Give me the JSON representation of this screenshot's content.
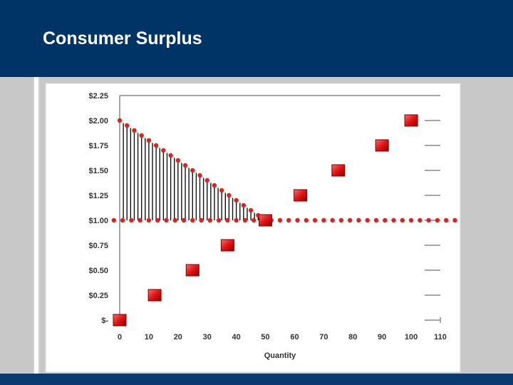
{
  "slide": {
    "title": "Consumer Surplus"
  },
  "chart_data": {
    "type": "scatter",
    "title": "",
    "xlabel": "Quantity",
    "ylabel": "",
    "xlim": [
      0,
      110
    ],
    "ylim": [
      0,
      2.25
    ],
    "x_ticks": [
      "0",
      "10",
      "20",
      "30",
      "40",
      "50",
      "60",
      "70",
      "80",
      "90",
      "100",
      "110"
    ],
    "y_ticks": [
      "$-",
      "$0.25",
      "$0.50",
      "$0.75",
      "$1.00",
      "$1.25",
      "$1.50",
      "$1.75",
      "$2.00",
      "$2.25"
    ],
    "grid": false,
    "series": [
      {
        "marker": "square",
        "color": "#e01010",
        "points": [
          [
            0,
            0
          ],
          [
            12,
            0.25
          ],
          [
            25,
            0.5
          ],
          [
            37,
            0.75
          ],
          [
            50,
            1.0
          ],
          [
            62,
            1.25
          ],
          [
            75,
            1.5
          ],
          [
            90,
            1.75
          ],
          [
            100,
            2.0
          ]
        ]
      },
      {
        "marker": "dot",
        "color": "#dd2222",
        "points": [
          [
            0,
            2.0
          ],
          [
            2.5,
            1.95
          ],
          [
            5,
            1.9
          ],
          [
            7.5,
            1.85
          ],
          [
            10,
            1.8
          ],
          [
            12.5,
            1.75
          ],
          [
            15,
            1.7
          ],
          [
            17.5,
            1.65
          ],
          [
            20,
            1.6
          ],
          [
            22.5,
            1.55
          ],
          [
            25,
            1.5
          ],
          [
            27.5,
            1.45
          ],
          [
            30,
            1.4
          ],
          [
            32.5,
            1.35
          ],
          [
            35,
            1.3
          ],
          [
            37.5,
            1.25
          ],
          [
            40,
            1.2
          ],
          [
            42.5,
            1.15
          ],
          [
            45,
            1.1
          ],
          [
            47.5,
            1.05
          ],
          [
            50,
            1.0
          ]
        ]
      },
      {
        "marker": "dot",
        "color": "#dd2222",
        "price": 1.0,
        "x_range": [
          -2,
          116
        ]
      }
    ],
    "shaded_area": {
      "x": [
        0,
        50
      ],
      "from": 2.0,
      "to": 1.0,
      "pattern": "vertical-stripes"
    }
  }
}
